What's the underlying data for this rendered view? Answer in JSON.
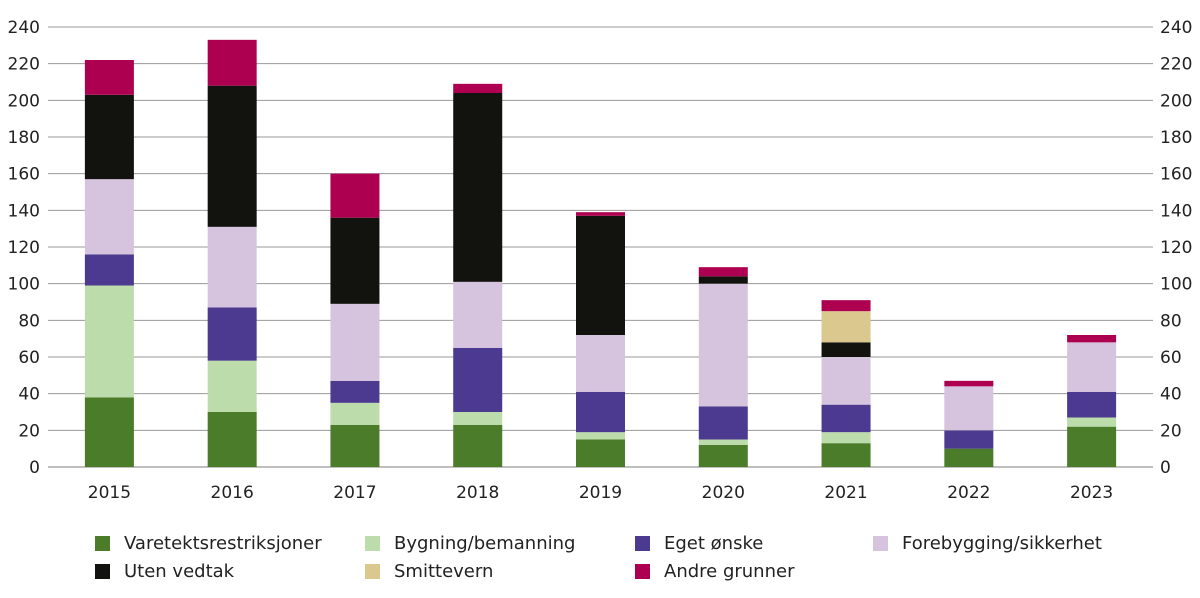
{
  "chart_data": {
    "type": "bar",
    "stacked": true,
    "categories": [
      "2015",
      "2016",
      "2017",
      "2018",
      "2019",
      "2020",
      "2021",
      "2022",
      "2023"
    ],
    "ylim": [
      0,
      240
    ],
    "yticks": [
      0,
      20,
      40,
      60,
      80,
      100,
      120,
      140,
      160,
      180,
      200,
      220,
      240
    ],
    "grid": true,
    "axes": "left-and-right",
    "legend_placement": "bottom",
    "series": [
      {
        "name": "Varetektsrestriksjoner",
        "color": "#4a7c2a",
        "values": [
          38,
          30,
          23,
          23,
          15,
          12,
          13,
          10,
          22
        ]
      },
      {
        "name": "Bygning/bemanning",
        "color": "#bcdcab",
        "values": [
          61,
          28,
          12,
          7,
          4,
          3,
          6,
          0,
          5
        ]
      },
      {
        "name": "Eget ønske",
        "color": "#4b3a8f",
        "values": [
          17,
          29,
          12,
          35,
          22,
          18,
          15,
          10,
          14
        ]
      },
      {
        "name": "Forebygging/sikkerhet",
        "color": "#d6c3de",
        "values": [
          41,
          44,
          42,
          36,
          31,
          67,
          26,
          24,
          27
        ]
      },
      {
        "name": "Uten vedtak",
        "color": "#12120e",
        "values": [
          46,
          77,
          47,
          103,
          65,
          4,
          8,
          0,
          0
        ]
      },
      {
        "name": "Smittevern",
        "color": "#dbc88e",
        "values": [
          0,
          0,
          0,
          0,
          0,
          0,
          17,
          0,
          0
        ]
      },
      {
        "name": "Andre grunner",
        "color": "#ad0050",
        "values": [
          19,
          25,
          24,
          5,
          2,
          5,
          6,
          3,
          4
        ]
      }
    ]
  }
}
